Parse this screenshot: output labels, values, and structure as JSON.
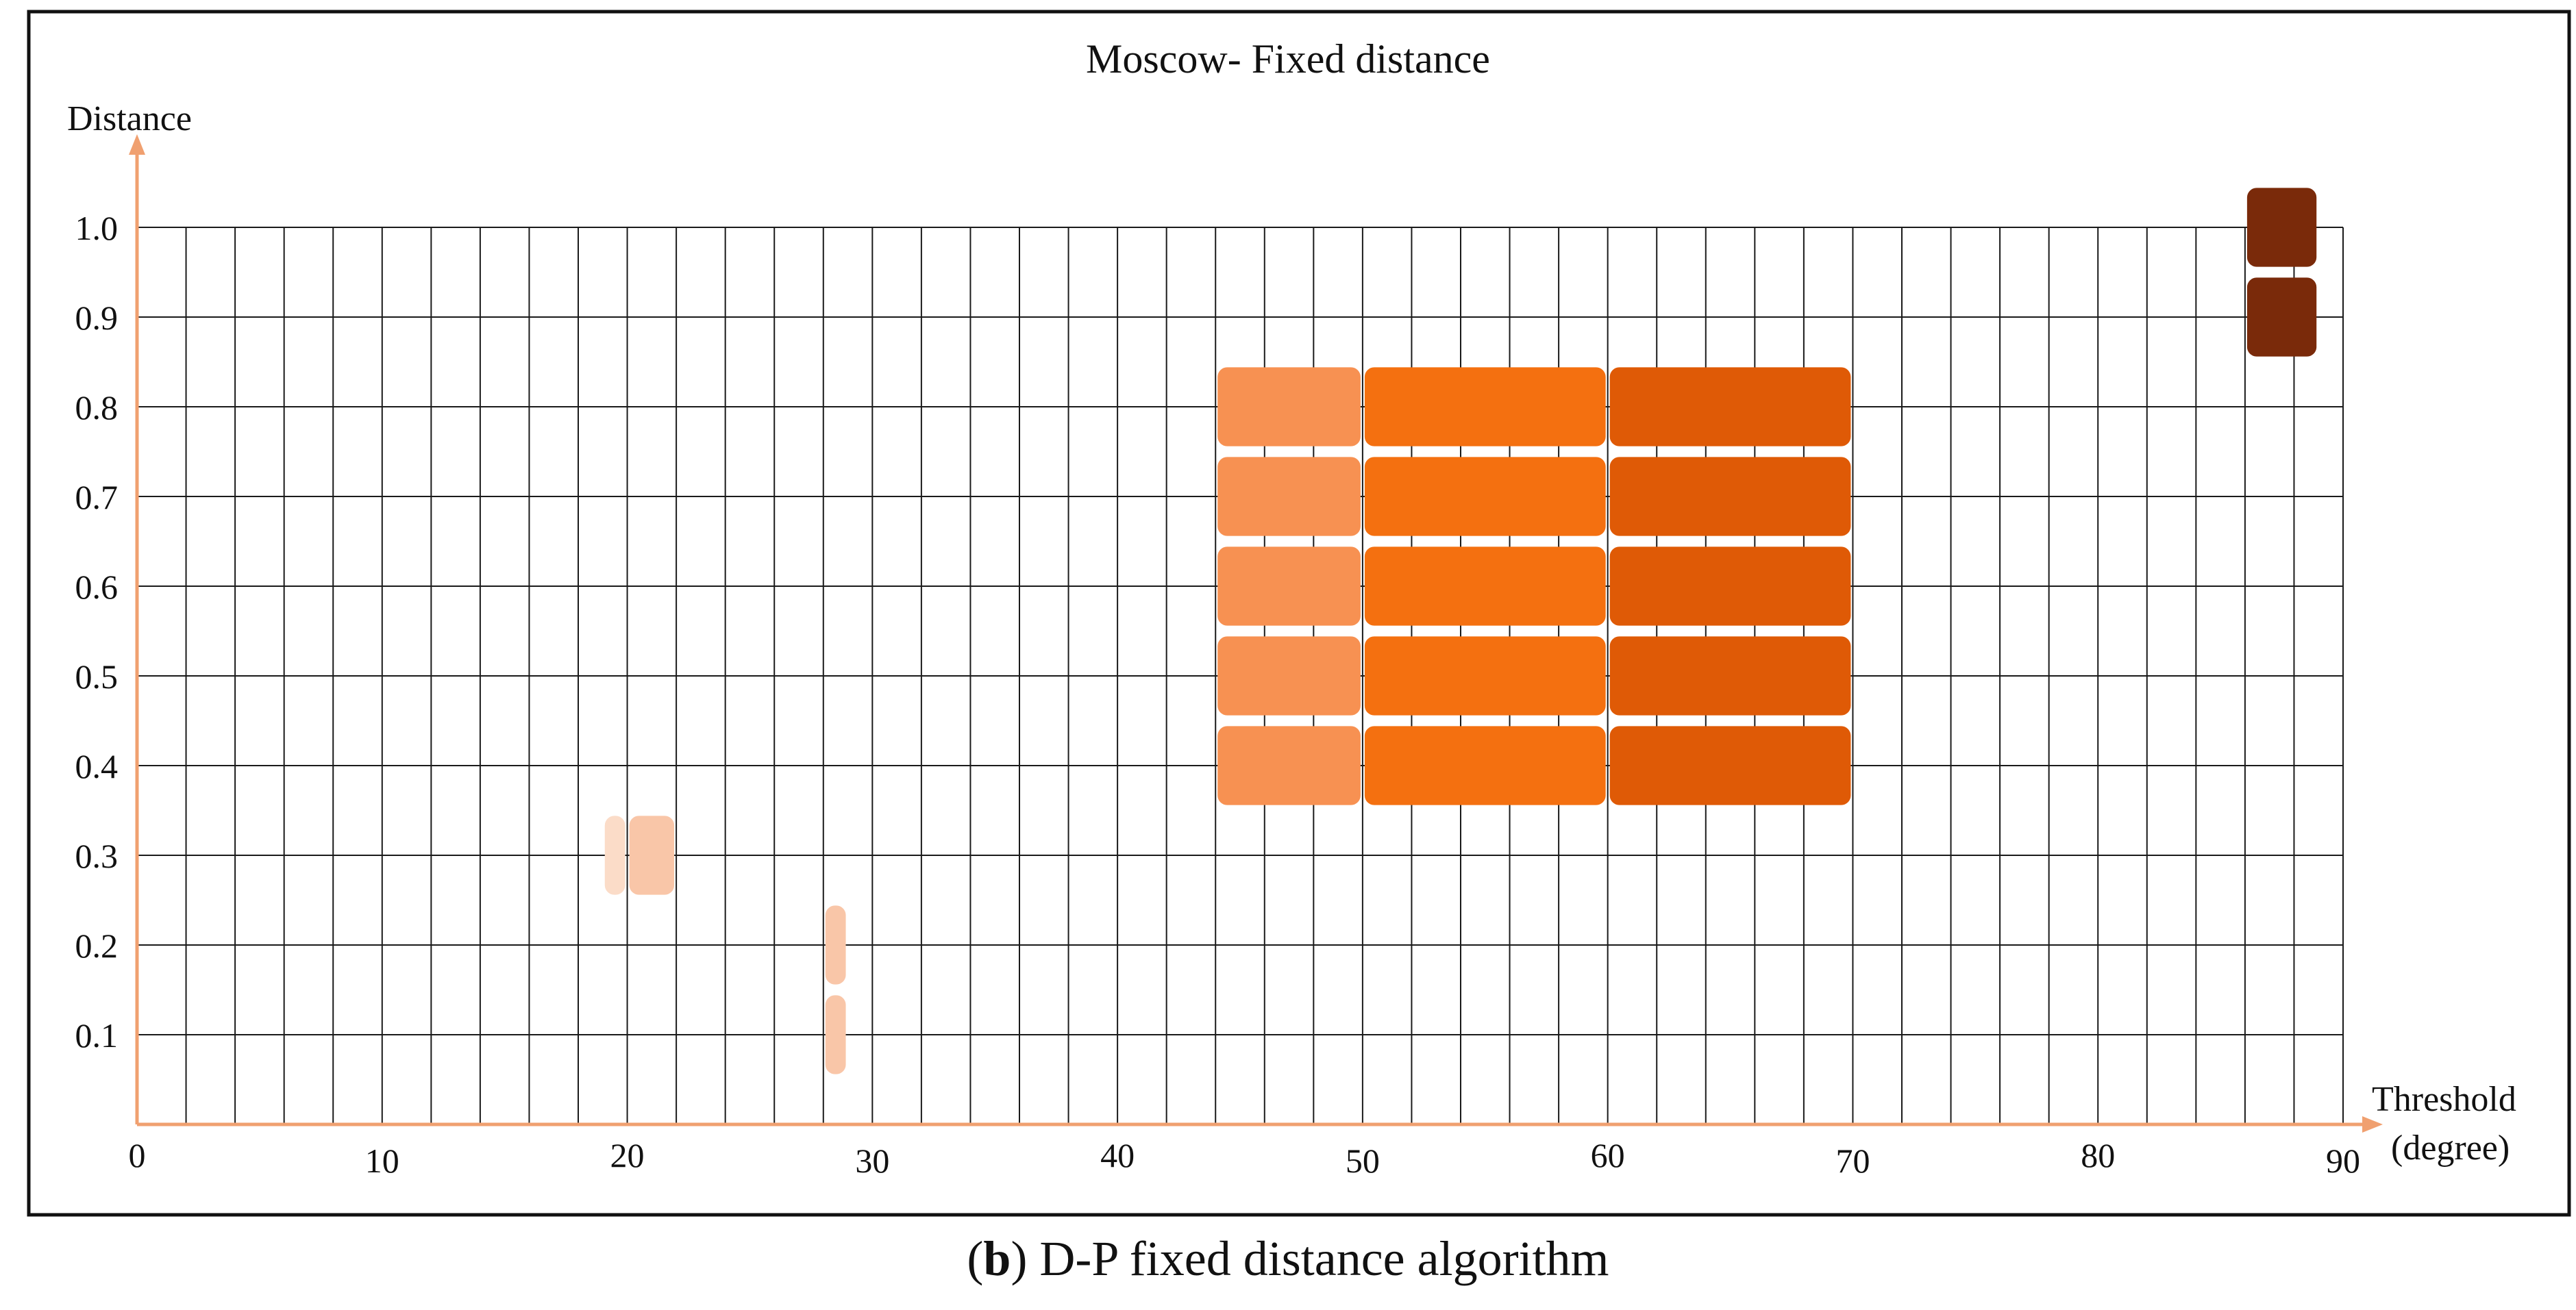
{
  "chart_data": {
    "type": "heatmap",
    "title": "Moscow- Fixed distance",
    "xlabel": "Threshold",
    "xlabel_unit": "(degree)",
    "ylabel": "Distance",
    "xlim": [
      0,
      90
    ],
    "ylim": [
      0,
      1.0
    ],
    "x_grid_step": 2,
    "y_grid_step": 0.1,
    "grid": true,
    "x_ticks": [
      {
        "value": 0,
        "label": "0"
      },
      {
        "value": 10,
        "label": "10"
      },
      {
        "value": 20,
        "label": "20"
      },
      {
        "value": 30,
        "label": "30"
      },
      {
        "value": 40,
        "label": "40"
      },
      {
        "value": 50,
        "label": "50"
      },
      {
        "value": 60,
        "label": "60"
      },
      {
        "value": 70,
        "label": "70"
      },
      {
        "value": 80,
        "label": "80"
      },
      {
        "value": 90,
        "label": "90"
      }
    ],
    "y_ticks": [
      {
        "value": 0.1,
        "label": "0.1"
      },
      {
        "value": 0.2,
        "label": "0.2"
      },
      {
        "value": 0.3,
        "label": "0.3"
      },
      {
        "value": 0.4,
        "label": "0.4"
      },
      {
        "value": 0.5,
        "label": "0.5"
      },
      {
        "value": 0.6,
        "label": "0.6"
      },
      {
        "value": 0.7,
        "label": "0.7"
      },
      {
        "value": 0.8,
        "label": "0.8"
      },
      {
        "value": 0.9,
        "label": "0.9"
      },
      {
        "value": 1.0,
        "label": "1.0"
      }
    ],
    "axis_color": "#f0a070",
    "regions": [
      {
        "x_from": 19,
        "x_to": 20,
        "y": 0.3,
        "color": "#fbdcc8"
      },
      {
        "x_from": 20,
        "x_to": 22,
        "y": 0.3,
        "color": "#f9c6a8"
      },
      {
        "x_from": 28,
        "x_to": 29,
        "y": 0.2,
        "color": "#f9c6a8"
      },
      {
        "x_from": 28,
        "x_to": 29,
        "y": 0.1,
        "color": "#f9c6a8"
      },
      {
        "x_from": 44,
        "x_to": 50,
        "y": 0.8,
        "color": "#f79152"
      },
      {
        "x_from": 44,
        "x_to": 50,
        "y": 0.7,
        "color": "#f79152"
      },
      {
        "x_from": 44,
        "x_to": 50,
        "y": 0.6,
        "color": "#f79152"
      },
      {
        "x_from": 44,
        "x_to": 50,
        "y": 0.5,
        "color": "#f79152"
      },
      {
        "x_from": 44,
        "x_to": 50,
        "y": 0.4,
        "color": "#f79152"
      },
      {
        "x_from": 50,
        "x_to": 60,
        "y": 0.8,
        "color": "#f47010"
      },
      {
        "x_from": 50,
        "x_to": 60,
        "y": 0.7,
        "color": "#f47010"
      },
      {
        "x_from": 50,
        "x_to": 60,
        "y": 0.6,
        "color": "#f47010"
      },
      {
        "x_from": 50,
        "x_to": 60,
        "y": 0.5,
        "color": "#f47010"
      },
      {
        "x_from": 50,
        "x_to": 60,
        "y": 0.4,
        "color": "#f47010"
      },
      {
        "x_from": 60,
        "x_to": 70,
        "y": 0.8,
        "color": "#df5a06"
      },
      {
        "x_from": 60,
        "x_to": 70,
        "y": 0.7,
        "color": "#df5a06"
      },
      {
        "x_from": 60,
        "x_to": 70,
        "y": 0.6,
        "color": "#df5a06"
      },
      {
        "x_from": 60,
        "x_to": 70,
        "y": 0.5,
        "color": "#df5a06"
      },
      {
        "x_from": 60,
        "x_to": 70,
        "y": 0.4,
        "color": "#df5a06"
      },
      {
        "x_from": 86,
        "x_to": 89,
        "y": 1.0,
        "color": "#7a2a0a"
      },
      {
        "x_from": 86,
        "x_to": 89,
        "y": 0.9,
        "color": "#7a2a0a"
      }
    ]
  },
  "caption": {
    "open": "(",
    "letter": "b",
    "text": ") D-P fixed distance algorithm"
  }
}
